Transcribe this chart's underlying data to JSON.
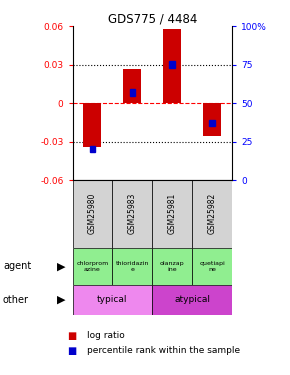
{
  "title": "GDS775 / 4484",
  "samples": [
    "GSM25980",
    "GSM25983",
    "GSM25981",
    "GSM25982"
  ],
  "log_ratios": [
    -0.034,
    0.027,
    0.058,
    -0.026
  ],
  "percentile_ranks": [
    0.2,
    0.57,
    0.75,
    0.37
  ],
  "ylim": [
    -0.06,
    0.06
  ],
  "bar_color": "#cc0000",
  "percentile_color": "#0000cc",
  "agents": [
    "chlorprom\nazine",
    "thioridazin\ne",
    "olanzap\nine",
    "quetiapi\nne"
  ],
  "yticks_left": [
    -0.06,
    -0.03,
    0,
    0.03,
    0.06
  ],
  "yticks_right": [
    0,
    25,
    50,
    75,
    100
  ],
  "hlines_dotted": [
    -0.03,
    0.03
  ],
  "gsm_bg": "#d3d3d3",
  "agent_color": "#90ee90",
  "typical_color": "#ee88ee",
  "atypical_color": "#cc44cc"
}
